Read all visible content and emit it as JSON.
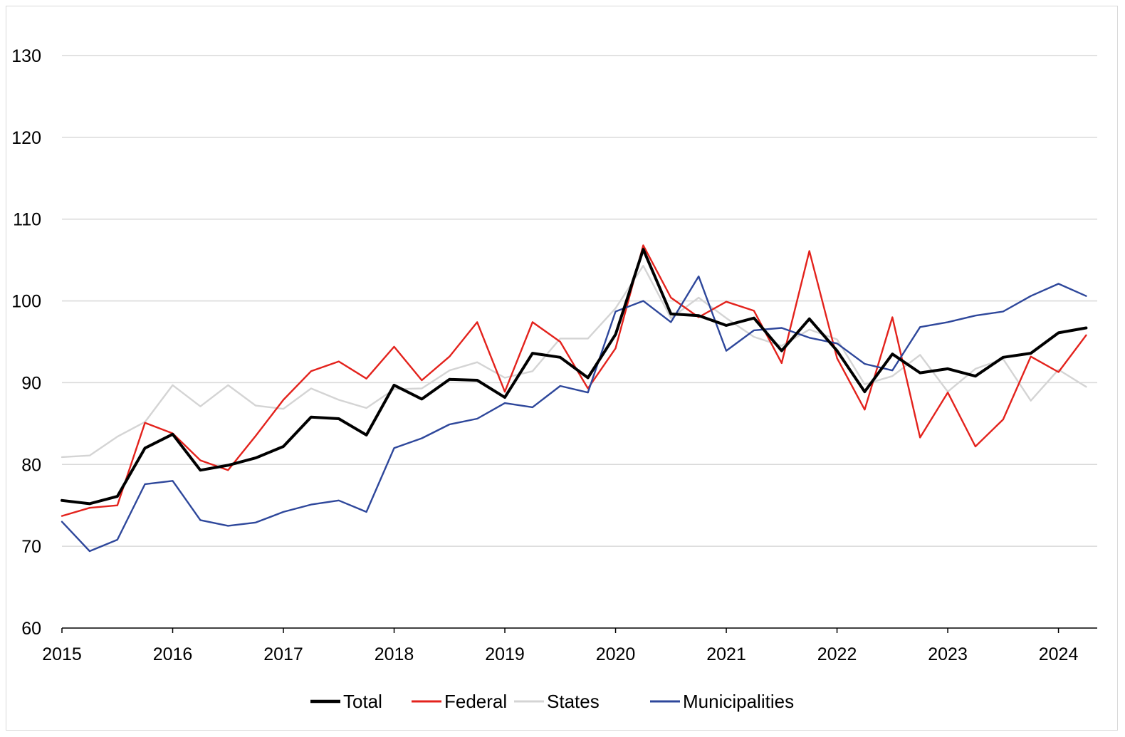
{
  "chart_data": {
    "type": "line",
    "title": "",
    "xlabel": "",
    "ylabel": "",
    "ylim": [
      60,
      130
    ],
    "yticks": [
      60,
      70,
      80,
      90,
      100,
      110,
      120,
      130
    ],
    "xlim": [
      2015,
      2024.35
    ],
    "xticks": [
      "2015",
      "2016",
      "2017",
      "2018",
      "2019",
      "2020",
      "2021",
      "2022",
      "2023",
      "2024"
    ],
    "grid": "horizontal",
    "legend": "bottom-center",
    "x": [
      2015.0,
      2015.25,
      2015.5,
      2015.75,
      2016.0,
      2016.25,
      2016.5,
      2016.75,
      2017.0,
      2017.25,
      2017.5,
      2017.75,
      2018.0,
      2018.25,
      2018.5,
      2018.75,
      2019.0,
      2019.25,
      2019.5,
      2019.75,
      2020.0,
      2020.25,
      2020.5,
      2020.75,
      2021.0,
      2021.25,
      2021.5,
      2021.75,
      2022.0,
      2022.25,
      2022.5,
      2022.75,
      2023.0,
      2023.25,
      2023.5,
      2023.75,
      2024.0,
      2024.25
    ],
    "series": [
      {
        "name": "Total",
        "color": "#000000",
        "width": 4,
        "values": [
          75.6,
          75.2,
          76.1,
          82.0,
          83.7,
          79.3,
          79.9,
          80.8,
          82.2,
          85.8,
          85.6,
          83.6,
          89.7,
          88.0,
          90.4,
          90.3,
          88.2,
          93.6,
          93.1,
          90.6,
          95.9,
          106.3,
          98.4,
          98.2,
          97.0,
          97.9,
          93.9,
          97.8,
          93.9,
          88.9,
          93.5,
          91.2,
          91.7,
          90.8,
          93.1,
          93.6,
          96.1,
          96.7
        ]
      },
      {
        "name": "Federal",
        "color": "#e3221c",
        "width": 2.4,
        "values": [
          73.7,
          74.7,
          75.0,
          85.1,
          83.8,
          80.5,
          79.3,
          83.5,
          87.9,
          91.4,
          92.6,
          90.5,
          94.4,
          90.3,
          93.2,
          97.4,
          88.9,
          97.4,
          95.0,
          89.3,
          94.2,
          106.8,
          100.4,
          98.0,
          99.9,
          98.8,
          92.4,
          106.1,
          93.0,
          86.7,
          98.0,
          83.3,
          88.8,
          82.2,
          85.5,
          93.2,
          91.3,
          95.8
        ]
      },
      {
        "name": "States",
        "color": "#d4d4d4",
        "width": 2.4,
        "values": [
          80.9,
          81.1,
          83.4,
          85.2,
          89.7,
          87.1,
          89.7,
          87.2,
          86.8,
          89.3,
          87.9,
          86.9,
          89.2,
          89.3,
          91.5,
          92.5,
          90.6,
          91.4,
          95.4,
          95.4,
          99.1,
          104.3,
          97.9,
          100.4,
          97.9,
          95.6,
          94.5,
          96.5,
          95.3,
          89.8,
          90.8,
          93.4,
          88.9,
          91.7,
          92.9,
          87.8,
          91.6,
          89.5
        ]
      },
      {
        "name": "Municipalities",
        "color": "#2e479b",
        "width": 2.4,
        "values": [
          73.0,
          69.4,
          70.8,
          77.6,
          78.0,
          73.2,
          72.5,
          72.9,
          74.2,
          75.1,
          75.6,
          74.2,
          82.0,
          83.2,
          84.9,
          85.6,
          87.5,
          87.0,
          89.6,
          88.8,
          98.7,
          100.0,
          97.4,
          103.0,
          93.9,
          96.4,
          96.7,
          95.5,
          94.8,
          92.3,
          91.5,
          96.8,
          97.4,
          98.2,
          98.7,
          100.6,
          102.1,
          100.6
        ]
      }
    ]
  }
}
